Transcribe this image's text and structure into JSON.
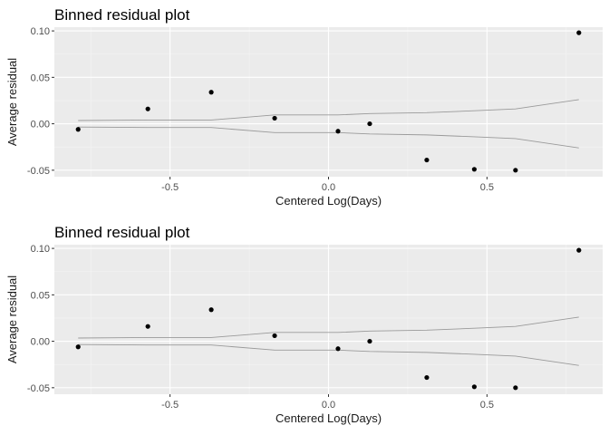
{
  "chart_data": [
    {
      "type": "scatter",
      "title": "Binned residual plot",
      "xlabel": "Centered Log(Days)",
      "ylabel": "Average residual",
      "xlim": [
        -0.865,
        0.865
      ],
      "ylim": [
        -0.057,
        0.104
      ],
      "x_ticks": [
        -0.5,
        0.0,
        0.5
      ],
      "x_tick_labels": [
        "-0.5",
        "0.0",
        "0.5"
      ],
      "y_ticks": [
        -0.05,
        0.0,
        0.05,
        0.1
      ],
      "y_tick_labels": [
        "-0.05",
        "0.00",
        "0.05",
        "0.10"
      ],
      "grid": true,
      "points": {
        "x": [
          -0.79,
          -0.57,
          -0.37,
          -0.17,
          0.03,
          0.13,
          0.31,
          0.46,
          0.59,
          0.79
        ],
        "y": [
          -0.006,
          0.016,
          0.034,
          0.006,
          -0.008,
          0.0,
          -0.039,
          -0.049,
          -0.05,
          0.098
        ]
      },
      "bounds": {
        "x": [
          -0.79,
          -0.57,
          -0.37,
          -0.17,
          0.03,
          0.13,
          0.31,
          0.46,
          0.59,
          0.79
        ],
        "upper": [
          0.0035,
          0.004,
          0.004,
          0.0095,
          0.0095,
          0.011,
          0.012,
          0.014,
          0.016,
          0.026
        ],
        "lower": [
          -0.0035,
          -0.004,
          -0.004,
          -0.0095,
          -0.0095,
          -0.011,
          -0.012,
          -0.014,
          -0.016,
          -0.026
        ]
      }
    },
    {
      "type": "scatter",
      "title": "Binned residual plot",
      "xlabel": "Centered Log(Days)",
      "ylabel": "Average residual",
      "xlim": [
        -0.865,
        0.865
      ],
      "ylim": [
        -0.057,
        0.104
      ],
      "x_ticks": [
        -0.5,
        0.0,
        0.5
      ],
      "x_tick_labels": [
        "-0.5",
        "0.0",
        "0.5"
      ],
      "y_ticks": [
        -0.05,
        0.0,
        0.05,
        0.1
      ],
      "y_tick_labels": [
        "-0.05",
        "0.00",
        "0.05",
        "0.10"
      ],
      "grid": true,
      "points": {
        "x": [
          -0.79,
          -0.57,
          -0.37,
          -0.17,
          0.03,
          0.13,
          0.31,
          0.46,
          0.59,
          0.79
        ],
        "y": [
          -0.006,
          0.016,
          0.034,
          0.006,
          -0.008,
          0.0,
          -0.039,
          -0.049,
          -0.05,
          0.098
        ]
      },
      "bounds": {
        "x": [
          -0.79,
          -0.57,
          -0.37,
          -0.17,
          0.03,
          0.13,
          0.31,
          0.46,
          0.59,
          0.79
        ],
        "upper": [
          0.0035,
          0.004,
          0.004,
          0.0095,
          0.0095,
          0.011,
          0.012,
          0.014,
          0.016,
          0.026
        ],
        "lower": [
          -0.0035,
          -0.004,
          -0.004,
          -0.0095,
          -0.0095,
          -0.011,
          -0.012,
          -0.014,
          -0.016,
          -0.026
        ]
      }
    }
  ]
}
